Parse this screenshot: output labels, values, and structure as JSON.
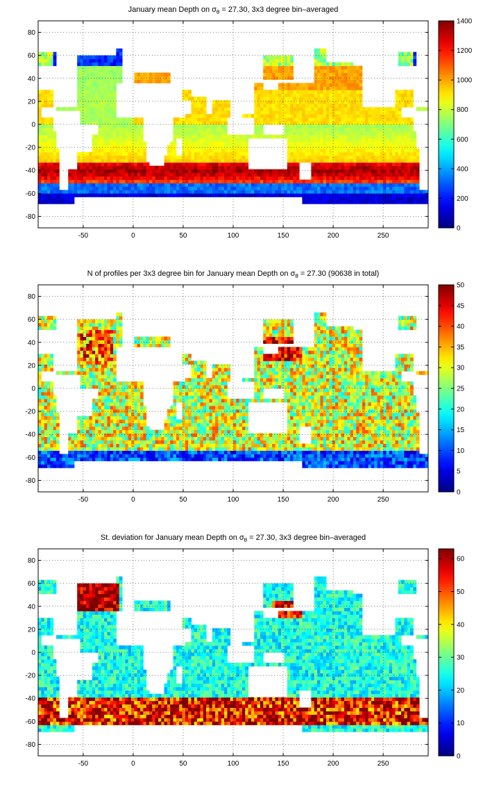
{
  "chart_data": [
    {
      "type": "heatmap",
      "title_pre": "January mean Depth on σ",
      "title_sub": "θ",
      "title_post": " = 27.30, 3x3 degree bin–averaged",
      "xlim": [
        -95,
        295
      ],
      "ylim": [
        -90,
        90
      ],
      "xticks": [
        -50,
        0,
        50,
        100,
        150,
        200,
        250
      ],
      "yticks": [
        -80,
        -60,
        -40,
        -20,
        0,
        20,
        40,
        60,
        80
      ],
      "colorbar": {
        "min": 0,
        "max": 1400,
        "ticks": [
          0,
          200,
          400,
          600,
          800,
          1000,
          1200,
          1400
        ]
      },
      "colormap": "jet",
      "grid": true,
      "field": "depth"
    },
    {
      "type": "heatmap",
      "title_pre": "N of profiles per 3x3 degree bin for January mean Depth on σ",
      "title_sub": "θ",
      "title_post": " = 27.30 (90638 in total)",
      "xlim": [
        -95,
        295
      ],
      "ylim": [
        -90,
        90
      ],
      "xticks": [
        -50,
        0,
        50,
        100,
        150,
        200,
        250
      ],
      "yticks": [
        -80,
        -60,
        -40,
        -20,
        0,
        20,
        40,
        60,
        80
      ],
      "colorbar": {
        "min": 0,
        "max": 50,
        "ticks": [
          0,
          5,
          10,
          15,
          20,
          25,
          30,
          35,
          40,
          45,
          50
        ]
      },
      "colormap": "jet",
      "grid": true,
      "field": "count"
    },
    {
      "type": "heatmap",
      "title_pre": "St. deviation for January mean Depth on σ",
      "title_sub": "θ",
      "title_post": " = 27.30, 3x3 degree bin–averaged",
      "xlim": [
        -95,
        295
      ],
      "ylim": [
        -90,
        90
      ],
      "xticks": [
        -50,
        0,
        50,
        100,
        150,
        200,
        250
      ],
      "yticks": [
        -80,
        -60,
        -40,
        -20,
        0,
        20,
        40,
        60,
        80
      ],
      "colorbar": {
        "min": 0,
        "max": 63,
        "ticks": [
          0,
          10,
          20,
          30,
          40,
          50,
          60
        ]
      },
      "colormap": "jet",
      "grid": true,
      "field": "std"
    }
  ]
}
